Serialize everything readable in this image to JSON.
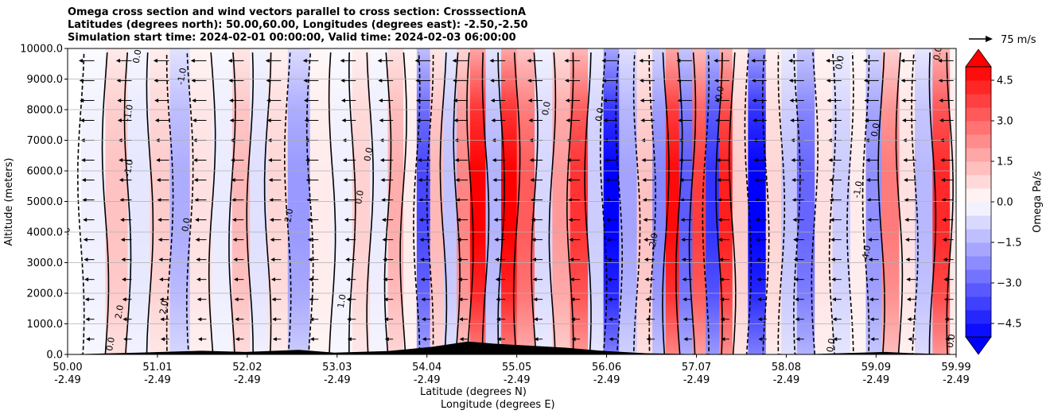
{
  "title": {
    "line1": "Omega cross section and wind vectors parallel to cross section: CrosssectionA",
    "line2": "Latitudes (degrees north): 50.00,60.00, Longitudes (degrees east): -2.50,-2.50",
    "line3": "Simulation start time: 2024-02-01 00:00:00, Valid time: 2024-02-03 06:00:00"
  },
  "wind_reference": {
    "label": "75 m/s",
    "arrow": "right-arrow-icon"
  },
  "colors": {
    "positive": "#ff0000",
    "negative": "#0000ff",
    "neutral": "#ffffff",
    "terrain": "#000000",
    "grid": "#b0b0b0"
  },
  "chart_data": {
    "type": "heatmap",
    "subtype": "filled contour cross section with contour lines and wind vectors",
    "xlabel_line1": "Latitude (degrees N)",
    "xlabel_line2": "Longitude (degrees E)",
    "ylabel": "Altitude (meters)",
    "colorbar_label": "Omega Pa/s",
    "x_range": [
      50.0,
      59.99
    ],
    "y_range": [
      0,
      10000
    ],
    "x_ticks": [
      {
        "lat": "50.00",
        "lon": "-2.49",
        "value": 50.0
      },
      {
        "lat": "51.01",
        "lon": "-2.49",
        "value": 51.01
      },
      {
        "lat": "52.02",
        "lon": "-2.49",
        "value": 52.02
      },
      {
        "lat": "53.03",
        "lon": "-2.49",
        "value": 53.03
      },
      {
        "lat": "54.04",
        "lon": "-2.49",
        "value": 54.04
      },
      {
        "lat": "55.05",
        "lon": "-2.49",
        "value": 55.05
      },
      {
        "lat": "56.06",
        "lon": "-2.49",
        "value": 56.06
      },
      {
        "lat": "57.07",
        "lon": "-2.49",
        "value": 57.07
      },
      {
        "lat": "58.08",
        "lon": "-2.49",
        "value": 58.08
      },
      {
        "lat": "59.09",
        "lon": "-2.49",
        "value": 59.09
      },
      {
        "lat": "59.99",
        "lon": "-2.49",
        "value": 59.99
      }
    ],
    "y_ticks": [
      {
        "label": "0.0",
        "value": 0
      },
      {
        "label": "1000.0",
        "value": 1000
      },
      {
        "label": "2000.0",
        "value": 2000
      },
      {
        "label": "3000.0",
        "value": 3000
      },
      {
        "label": "4000.0",
        "value": 4000
      },
      {
        "label": "5000.0",
        "value": 5000
      },
      {
        "label": "6000.0",
        "value": 6000
      },
      {
        "label": "7000.0",
        "value": 7000
      },
      {
        "label": "8000.0",
        "value": 8000
      },
      {
        "label": "9000.0",
        "value": 9000
      },
      {
        "label": "10000.0",
        "value": 10000
      }
    ],
    "colorbar_range": [
      -5.0,
      5.0
    ],
    "colorbar_ticks": [
      {
        "label": "4.5",
        "value": 4.5
      },
      {
        "label": "3.0",
        "value": 3.0
      },
      {
        "label": "1.5",
        "value": 1.5
      },
      {
        "label": "0.0",
        "value": 0.0
      },
      {
        "label": "−1.5",
        "value": -1.5
      },
      {
        "label": "−3.0",
        "value": -3.0
      },
      {
        "label": "−4.5",
        "value": -4.5
      }
    ],
    "omega_columns": [
      {
        "lat": 50.0,
        "omega": 0.0
      },
      {
        "lat": 50.3,
        "omega": -0.3
      },
      {
        "lat": 50.55,
        "omega": 1.2
      },
      {
        "lat": 50.8,
        "omega": -0.5
      },
      {
        "lat": 51.05,
        "omega": 1.0
      },
      {
        "lat": 51.25,
        "omega": -1.6
      },
      {
        "lat": 51.5,
        "omega": 0.6
      },
      {
        "lat": 51.75,
        "omega": -0.4
      },
      {
        "lat": 51.95,
        "omega": 1.4
      },
      {
        "lat": 52.15,
        "omega": -0.6
      },
      {
        "lat": 52.35,
        "omega": 0.8
      },
      {
        "lat": 52.6,
        "omega": -2.0
      },
      {
        "lat": 52.85,
        "omega": 0.4
      },
      {
        "lat": 53.1,
        "omega": -0.3
      },
      {
        "lat": 53.3,
        "omega": 0.9
      },
      {
        "lat": 53.5,
        "omega": -0.4
      },
      {
        "lat": 53.7,
        "omega": 1.6
      },
      {
        "lat": 53.85,
        "omega": 0.4
      },
      {
        "lat": 54.0,
        "omega": -3.6
      },
      {
        "lat": 54.15,
        "omega": 1.4
      },
      {
        "lat": 54.3,
        "omega": -1.2
      },
      {
        "lat": 54.45,
        "omega": 2.4
      },
      {
        "lat": 54.6,
        "omega": 5.0
      },
      {
        "lat": 54.8,
        "omega": -1.5
      },
      {
        "lat": 54.95,
        "omega": 5.0
      },
      {
        "lat": 55.15,
        "omega": 3.2
      },
      {
        "lat": 55.35,
        "omega": -0.8
      },
      {
        "lat": 55.55,
        "omega": 2.0
      },
      {
        "lat": 55.75,
        "omega": 4.0
      },
      {
        "lat": 55.95,
        "omega": -1.0
      },
      {
        "lat": 56.1,
        "omega": -5.0
      },
      {
        "lat": 56.3,
        "omega": -1.8
      },
      {
        "lat": 56.5,
        "omega": 1.2
      },
      {
        "lat": 56.65,
        "omega": -2.4
      },
      {
        "lat": 56.8,
        "omega": 4.8
      },
      {
        "lat": 56.95,
        "omega": -3.2
      },
      {
        "lat": 57.1,
        "omega": 3.8
      },
      {
        "lat": 57.25,
        "omega": -4.0
      },
      {
        "lat": 57.4,
        "omega": 4.4
      },
      {
        "lat": 57.55,
        "omega": 1.0
      },
      {
        "lat": 57.75,
        "omega": -5.0
      },
      {
        "lat": 57.95,
        "omega": 0.8
      },
      {
        "lat": 58.1,
        "omega": -1.2
      },
      {
        "lat": 58.3,
        "omega": -3.0
      },
      {
        "lat": 58.5,
        "omega": 0.6
      },
      {
        "lat": 58.7,
        "omega": -1.0
      },
      {
        "lat": 58.9,
        "omega": 0.4
      },
      {
        "lat": 59.05,
        "omega": -2.2
      },
      {
        "lat": 59.25,
        "omega": 2.6
      },
      {
        "lat": 59.45,
        "omega": 0.6
      },
      {
        "lat": 59.6,
        "omega": -1.4
      },
      {
        "lat": 59.85,
        "omega": 4.2
      },
      {
        "lat": 59.99,
        "omega": 0.5
      }
    ],
    "contour_labels": [
      {
        "text": "2.0",
        "lat": 50.6,
        "alt": 1150
      },
      {
        "text": "0.0",
        "lat": 50.8,
        "alt": 9500
      },
      {
        "text": "-1.0",
        "lat": 50.7,
        "alt": 7600
      },
      {
        "text": "-1.0",
        "lat": 50.7,
        "alt": 5800
      },
      {
        "text": "-1.0",
        "lat": 51.3,
        "alt": 8800
      },
      {
        "text": "0.0",
        "lat": 51.35,
        "alt": 4000
      },
      {
        "text": "0.0",
        "lat": 50.0,
        "alt": 3700
      },
      {
        "text": "2.0",
        "lat": 51.1,
        "alt": 1300
      },
      {
        "text": "1.0",
        "lat": 53.1,
        "alt": 1500
      },
      {
        "text": "0.0",
        "lat": 53.4,
        "alt": 6300
      },
      {
        "text": "0.0",
        "lat": 53.3,
        "alt": 4900
      },
      {
        "text": "-2.0",
        "lat": 52.5,
        "alt": 4200
      },
      {
        "text": "0.0",
        "lat": 56.0,
        "alt": 7600
      },
      {
        "text": "0.0",
        "lat": 55.4,
        "alt": 7800
      },
      {
        "text": "-2.0",
        "lat": 56.6,
        "alt": 3400
      },
      {
        "text": "0.0",
        "lat": 57.35,
        "alt": 8300
      },
      {
        "text": "0.0",
        "lat": 58.7,
        "alt": 9300
      },
      {
        "text": "0.0",
        "lat": 59.1,
        "alt": 7100
      },
      {
        "text": "-1.0",
        "lat": 58.9,
        "alt": 5100
      },
      {
        "text": "4.0",
        "lat": 59.0,
        "alt": 3100
      },
      {
        "text": "0.0",
        "lat": 58.6,
        "alt": 60
      },
      {
        "text": "0.0",
        "lat": 59.8,
        "alt": 9600
      },
      {
        "text": "0.0",
        "lat": 59.95,
        "alt": 200
      },
      {
        "text": "0.0",
        "lat": 50.5,
        "alt": 100
      }
    ],
    "wind_vectors_summary": "Predominantly leftward (southward) arrows of ~20-40 m/s throughout the column; strongest near the top of the domain",
    "terrain": [
      {
        "lat": 50.0,
        "alt": 0
      },
      {
        "lat": 50.8,
        "alt": 60
      },
      {
        "lat": 51.5,
        "alt": 120
      },
      {
        "lat": 52.0,
        "alt": 80
      },
      {
        "lat": 52.6,
        "alt": 150
      },
      {
        "lat": 53.0,
        "alt": 60
      },
      {
        "lat": 53.6,
        "alt": 110
      },
      {
        "lat": 54.1,
        "alt": 250
      },
      {
        "lat": 54.5,
        "alt": 420
      },
      {
        "lat": 54.8,
        "alt": 350
      },
      {
        "lat": 55.1,
        "alt": 300
      },
      {
        "lat": 55.6,
        "alt": 220
      },
      {
        "lat": 56.0,
        "alt": 120
      },
      {
        "lat": 56.5,
        "alt": 40
      },
      {
        "lat": 57.2,
        "alt": 0
      },
      {
        "lat": 58.2,
        "alt": 0
      },
      {
        "lat": 59.2,
        "alt": 80
      },
      {
        "lat": 59.5,
        "alt": 40
      },
      {
        "lat": 59.99,
        "alt": 0
      }
    ]
  }
}
